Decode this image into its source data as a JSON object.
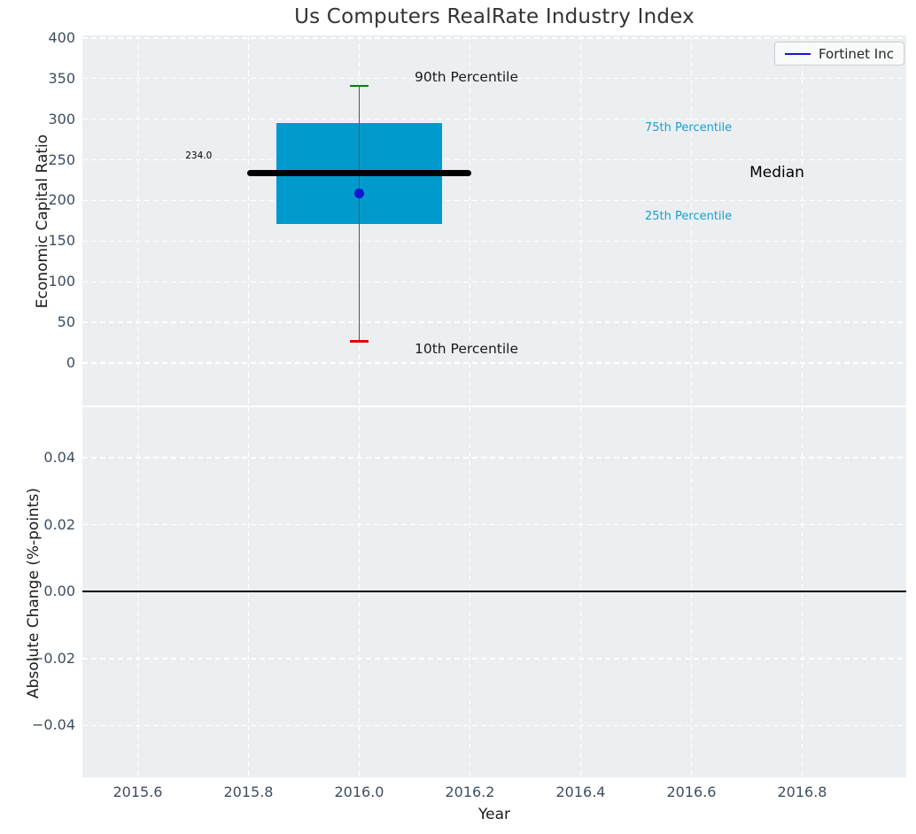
{
  "title": "Us Computers RealRate Industry Index",
  "legend": {
    "label": "Fortinet Inc",
    "line_color": "#1414d4",
    "position": "upper right"
  },
  "colors": {
    "panel_background": "#eceff1",
    "grid": "#ffffff",
    "tick_label": "#3d4e60",
    "box_fill": "#009acd",
    "whisker_line": "#555555",
    "cap_high": "#008000",
    "cap_low": "#e60000",
    "median_line": "#000000",
    "company_point": "#1414d4",
    "percentile_label": "#18a0d0",
    "zero_line": "#000000"
  },
  "chart_data": [
    {
      "type": "boxplot",
      "title": "Us Computers RealRate Industry Index",
      "ylabel": "Economic Capital Ratio",
      "xlabel": "",
      "ylim": [
        -52,
        403
      ],
      "xlim": [
        2015.5,
        2016.988
      ],
      "grid": true,
      "ytick_values": [
        0,
        50,
        100,
        150,
        200,
        250,
        300,
        350,
        400
      ],
      "ytick_labels": [
        "0",
        "50",
        "100",
        "150",
        "200",
        "250",
        "300",
        "350",
        "400"
      ],
      "xtick_values": [
        2015.6,
        2015.8,
        2016.0,
        2016.2,
        2016.4,
        2016.6,
        2016.8
      ],
      "xtick_labels": [
        "2015.6",
        "2015.8",
        "2016.0",
        "2016.2",
        "2016.4",
        "2016.6",
        "2016.8"
      ],
      "box": {
        "x": 2016.0,
        "percentile_10": 27,
        "quartile_1": 171,
        "median": 234.0,
        "quartile_3": 295,
        "percentile_90": 341,
        "box_halfwidth_years": 0.15,
        "median_halfwidth_years": 0.203,
        "cap_halfwidth_years": 0.017,
        "median_label": "234.0",
        "company_point": {
          "name": "Fortinet Inc",
          "x": 2016.0,
          "y": 209
        }
      },
      "annotations": [
        {
          "text": "234.0",
          "x": 2015.71,
          "y": 254,
          "color": "#000000",
          "size": 10.5,
          "align": "center"
        },
        {
          "text": "90th Percentile",
          "x": 2016.1,
          "y": 351,
          "color": "#1a1a1a",
          "size": 15.5,
          "align": "left"
        },
        {
          "text": "10th Percentile",
          "x": 2016.1,
          "y": 17,
          "color": "#1a1a1a",
          "size": 15.5,
          "align": "left"
        },
        {
          "text": "75th Percentile",
          "x": 2016.516,
          "y": 289,
          "color": "#18a0d0",
          "size": 13,
          "align": "left"
        },
        {
          "text": "25th Percentile",
          "x": 2016.516,
          "y": 180,
          "color": "#18a0d0",
          "size": 13,
          "align": "left"
        },
        {
          "text": "Median",
          "x": 2016.705,
          "y": 234,
          "color": "#000000",
          "size": 17,
          "align": "left"
        }
      ]
    },
    {
      "type": "line",
      "title": "",
      "ylabel": "Absolute Change (%-points)",
      "xlabel": "Year",
      "ylim": [
        -0.0555,
        0.0551
      ],
      "xlim": [
        2015.5,
        2016.988
      ],
      "grid": true,
      "zero_line": true,
      "series": [],
      "ytick_values": [
        0.04,
        0.02,
        0.0,
        -0.02,
        -0.04
      ],
      "ytick_labels": [
        "0.04",
        "0.02",
        "0.00",
        "−0.02",
        "−0.04"
      ],
      "xtick_values": [
        2015.6,
        2015.8,
        2016.0,
        2016.2,
        2016.4,
        2016.6,
        2016.8
      ],
      "xtick_labels": [
        "2015.6",
        "2015.8",
        "2016.0",
        "2016.2",
        "2016.4",
        "2016.6",
        "2016.8"
      ]
    }
  ]
}
